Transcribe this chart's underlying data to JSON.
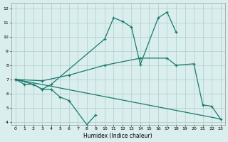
{
  "xlabel": "Humidex (Indice chaleur)",
  "xlim": [
    -0.5,
    23.5
  ],
  "ylim": [
    3.8,
    12.4
  ],
  "xticks": [
    0,
    1,
    2,
    3,
    4,
    5,
    6,
    7,
    8,
    9,
    10,
    11,
    12,
    13,
    14,
    15,
    16,
    17,
    18,
    19,
    20,
    21,
    22,
    23
  ],
  "yticks": [
    4,
    5,
    6,
    7,
    8,
    9,
    10,
    11,
    12
  ],
  "bg_color": "#d9eeed",
  "grid_color": "#b0cccc",
  "line_color": "#1a7a6e",
  "line1_x": [
    0,
    1,
    2,
    3,
    4,
    5,
    6,
    8,
    9
  ],
  "line1_y": [
    7.0,
    6.65,
    6.65,
    6.3,
    6.3,
    5.75,
    5.5,
    3.8,
    4.5
  ],
  "line2_x": [
    0,
    2,
    3,
    4,
    10,
    11,
    12,
    13,
    14,
    16,
    17,
    18
  ],
  "line2_y": [
    7.0,
    6.65,
    6.3,
    6.65,
    9.85,
    11.35,
    11.1,
    10.7,
    8.05,
    11.35,
    11.75,
    10.35
  ],
  "line3_x": [
    0,
    3,
    6,
    10,
    14,
    17,
    18,
    20,
    21,
    22,
    23
  ],
  "line3_y": [
    7.0,
    6.9,
    7.3,
    8.0,
    8.5,
    8.5,
    8.0,
    8.1,
    5.2,
    5.1,
    4.2
  ],
  "line4_x": [
    0,
    23
  ],
  "line4_y": [
    7.0,
    4.2
  ]
}
